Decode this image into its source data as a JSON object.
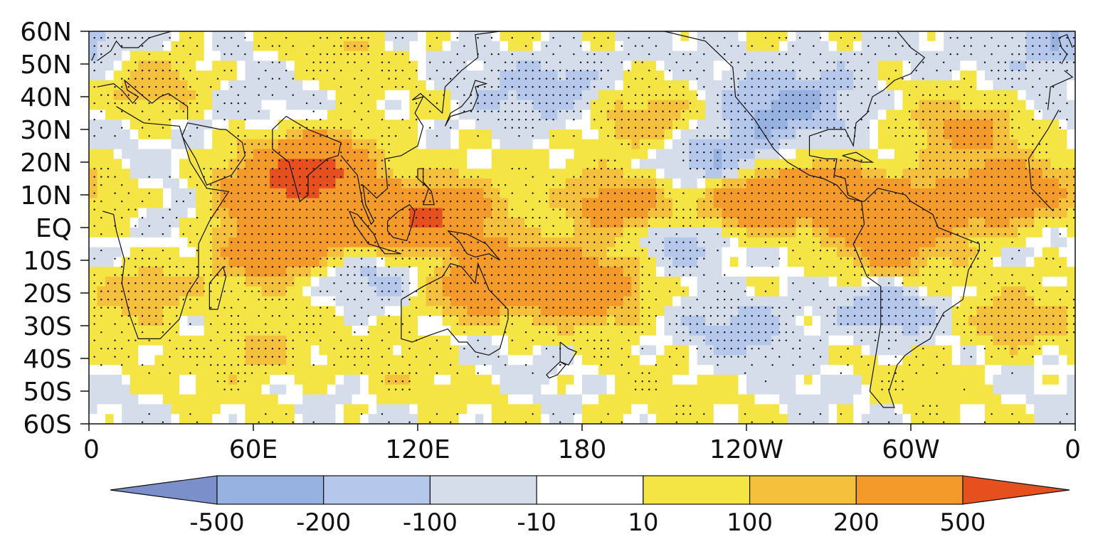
{
  "map": {
    "type": "filled-contour-map",
    "projection": "cylindrical-equidistant",
    "lon_range_deg_east": [
      0,
      360
    ],
    "lat_range_deg": [
      -60,
      60
    ],
    "coastlines": true,
    "stippling": true,
    "y_tick_labels": [
      "60N",
      "50N",
      "40N",
      "30N",
      "20N",
      "10N",
      "EQ",
      "10S",
      "20S",
      "30S",
      "40S",
      "50S",
      "60S"
    ],
    "x_tick_labels": [
      "0",
      "60E",
      "120E",
      "180",
      "120W",
      "60W",
      "0"
    ]
  },
  "colorbar": {
    "labels": [
      "-500",
      "-200",
      "-100",
      "-10",
      "10",
      "100",
      "200",
      "500"
    ],
    "colors": [
      "#7b8fcb",
      "#97b1e0",
      "#b5c7ea",
      "#d4dde9",
      "#ffffff",
      "#f4e544",
      "#f5c13c",
      "#f39a2a",
      "#e5501e"
    ],
    "extend": "both"
  },
  "chart_data": {
    "type": "heatmap",
    "levels": [
      -500,
      -200,
      -100,
      -10,
      10,
      100,
      200,
      500
    ],
    "colors": [
      "#7b8fcb",
      "#97b1e0",
      "#b5c7ea",
      "#d4dde9",
      "#ffffff",
      "#f4e544",
      "#f5c13c",
      "#f39a2a",
      "#e5501e"
    ],
    "x": [
      "0",
      "60E",
      "120E",
      "180",
      "120W",
      "60W",
      "0"
    ],
    "y": [
      "60N",
      "50N",
      "40N",
      "30N",
      "20N",
      "10N",
      "EQ",
      "10S",
      "20S",
      "30S",
      "40S",
      "50S",
      "60S"
    ],
    "features": [
      {
        "lon": 105,
        "lat": 0,
        "value": 350
      },
      {
        "lon": 130,
        "lat": 5,
        "value": 450
      },
      {
        "lon": 75,
        "lat": 15,
        "value": 300
      },
      {
        "lon": 68,
        "lat": -5,
        "value": 450
      },
      {
        "lon": 88,
        "lat": 20,
        "value": 350
      },
      {
        "lon": 60,
        "lat": 10,
        "value": 250
      },
      {
        "lon": 195,
        "lat": 7,
        "value": 300
      },
      {
        "lon": 240,
        "lat": 8,
        "value": 400
      },
      {
        "lon": 270,
        "lat": 10,
        "value": 350
      },
      {
        "lon": 298,
        "lat": 6,
        "value": 250
      },
      {
        "lon": 325,
        "lat": 8,
        "value": 300
      },
      {
        "lon": 185,
        "lat": -18,
        "value": 400
      },
      {
        "lon": 160,
        "lat": -12,
        "value": 300
      },
      {
        "lon": 140,
        "lat": -20,
        "value": 250
      },
      {
        "lon": 200,
        "lat": 32,
        "value": 180
      },
      {
        "lon": 320,
        "lat": 30,
        "value": 220
      },
      {
        "lon": 345,
        "lat": 12,
        "value": 180
      },
      {
        "lon": 20,
        "lat": -20,
        "value": 180
      },
      {
        "lon": 25,
        "lat": 45,
        "value": 150
      },
      {
        "lon": 60,
        "lat": -38,
        "value": 150
      },
      {
        "lon": 290,
        "lat": -8,
        "value": 250
      },
      {
        "lon": 335,
        "lat": -30,
        "value": 150
      },
      {
        "lon": 230,
        "lat": 20,
        "value": -250
      },
      {
        "lon": 250,
        "lat": 35,
        "value": -200
      },
      {
        "lon": 215,
        "lat": -5,
        "value": -200
      },
      {
        "lon": 240,
        "lat": -30,
        "value": -150
      },
      {
        "lon": 290,
        "lat": -25,
        "value": -180
      },
      {
        "lon": 175,
        "lat": 45,
        "value": -150
      },
      {
        "lon": 150,
        "lat": 35,
        "value": -80
      },
      {
        "lon": 270,
        "lat": 45,
        "value": -120
      },
      {
        "lon": 105,
        "lat": -12,
        "value": -150
      },
      {
        "lon": 50,
        "lat": 35,
        "value": -60
      },
      {
        "lon": 35,
        "lat": 0,
        "value": -80
      },
      {
        "lon": 350,
        "lat": 55,
        "value": -100
      },
      {
        "lon": 0,
        "lat": 58,
        "value": -120
      },
      {
        "lon": 100,
        "lat": 55,
        "value": 60
      },
      {
        "lon": 200,
        "lat": -55,
        "value": 60
      },
      {
        "lon": 300,
        "lat": -50,
        "value": 40
      },
      {
        "lon": 110,
        "lat": -45,
        "value": 50
      }
    ]
  }
}
